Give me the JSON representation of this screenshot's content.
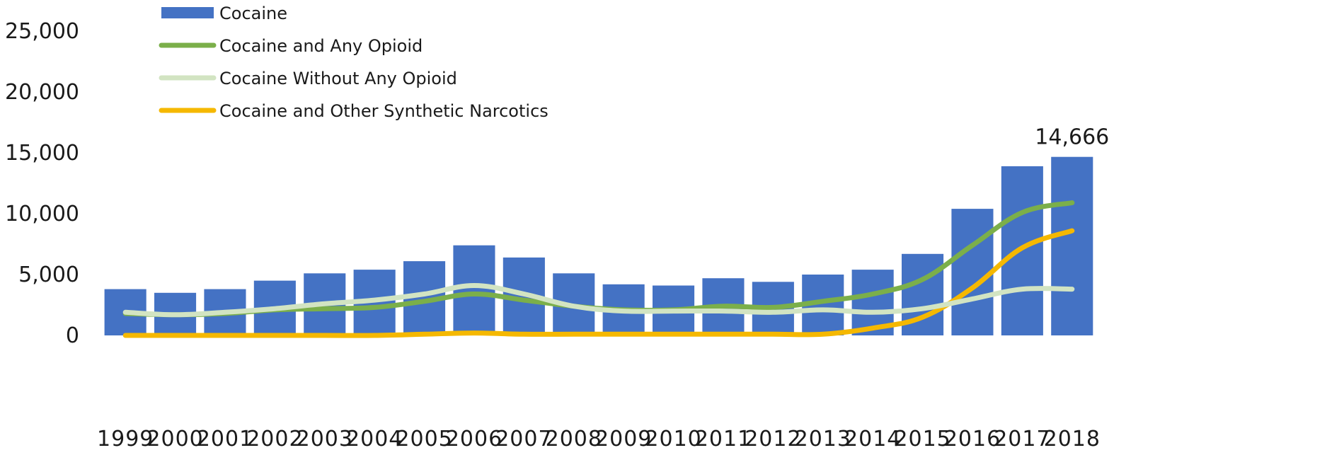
{
  "chart_data": {
    "type": "bar",
    "title": "",
    "xlabel": "",
    "ylabel": "",
    "ylim": [
      0,
      25000
    ],
    "y_ticks": [
      "0",
      "5,000",
      "10,000",
      "15,000",
      "20,000",
      "25,000"
    ],
    "y_tick_values": [
      0,
      5000,
      10000,
      15000,
      20000,
      25000
    ],
    "grid": false,
    "legend_position": "top-left",
    "categories": [
      "1999",
      "2000",
      "2001",
      "2002",
      "2003",
      "2004",
      "2005",
      "2006",
      "2007",
      "2008",
      "2009",
      "2010",
      "2011",
      "2012",
      "2013",
      "2014",
      "2015",
      "2016",
      "2017",
      "2018"
    ],
    "series": [
      {
        "name": "Cocaine",
        "kind": "bar",
        "color": "#4472C4",
        "values": [
          3800,
          3500,
          3800,
          4500,
          5100,
          5400,
          6100,
          7400,
          6400,
          5100,
          4200,
          4100,
          4700,
          4400,
          5000,
          5400,
          6700,
          10400,
          13900,
          14666
        ]
      },
      {
        "name": "Cocaine and Any Opioid",
        "kind": "line",
        "color": "#7BAF4A",
        "values": [
          1800,
          1700,
          1800,
          2100,
          2200,
          2300,
          2800,
          3400,
          2900,
          2400,
          2100,
          2100,
          2400,
          2300,
          2800,
          3400,
          4600,
          7400,
          10100,
          10900
        ]
      },
      {
        "name": "Cocaine Without Any Opioid",
        "kind": "line",
        "color": "#D2E4C2",
        "values": [
          1900,
          1700,
          1900,
          2200,
          2600,
          2900,
          3400,
          4100,
          3400,
          2400,
          2000,
          2000,
          2000,
          1900,
          2100,
          1900,
          2200,
          3000,
          3800,
          3800
        ]
      },
      {
        "name": "Cocaine and Other Synthetic Narcotics",
        "kind": "line",
        "color": "#F5B800",
        "values": [
          0,
          0,
          0,
          0,
          0,
          0,
          100,
          200,
          100,
          100,
          100,
          100,
          100,
          100,
          100,
          600,
          1500,
          3900,
          7200,
          8600
        ]
      }
    ],
    "annotations": [
      {
        "series": "Cocaine",
        "category": "2018",
        "text": "14,666"
      }
    ]
  }
}
